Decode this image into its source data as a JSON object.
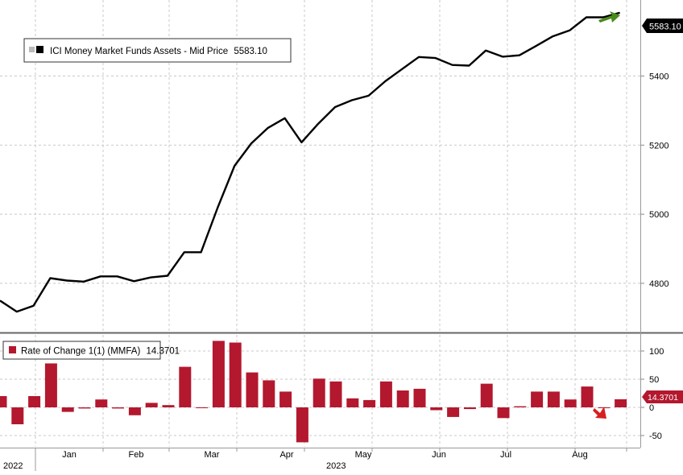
{
  "chart_data": [
    {
      "type": "line",
      "legend": {
        "label": "ICI Money Market Funds Assets - Mid Price",
        "value": "5583.10",
        "placement": "top-left"
      },
      "last_value_tag": "5583.10",
      "x_tick_labels": [
        "Jan",
        "Feb",
        "Mar",
        "Apr",
        "May",
        "Jun",
        "Jul",
        "Aug"
      ],
      "year_labels": [
        "2022",
        "2023"
      ],
      "y_ticks": [
        4800,
        5000,
        5200,
        5400
      ],
      "ylim": [
        4660,
        5620
      ],
      "grid": true,
      "colors": {
        "line": "#000000",
        "arrow": "#4a8a1a"
      },
      "series": [
        {
          "values": [
            4750,
            4718,
            4735,
            4815,
            4808,
            4805,
            4820,
            4820,
            4806,
            4817,
            4822,
            4890,
            4890,
            5020,
            5140,
            5205,
            5250,
            5278,
            5208,
            5262,
            5310,
            5330,
            5343,
            5385,
            5420,
            5455,
            5452,
            5432,
            5430,
            5474,
            5456,
            5460,
            5487,
            5515,
            5532,
            5570,
            5570,
            5583.1
          ]
        }
      ]
    },
    {
      "type": "bar",
      "legend": {
        "label": "Rate of Change 1(1) (MMFA)",
        "value": "14.3701",
        "placement": "top-left"
      },
      "last_value_tag": "14.3701",
      "y_ticks": [
        -50,
        0,
        50,
        100
      ],
      "y_tick_labels": [
        "-50",
        "0",
        "50",
        "100"
      ],
      "ylim": [
        -70,
        130
      ],
      "grid": true,
      "colors": {
        "bar": "#b3182e",
        "arrow": "#d62020"
      },
      "series": [
        {
          "values": [
            20,
            -30,
            20,
            78,
            -8,
            -2,
            14,
            -2,
            -14,
            8,
            4,
            72,
            0,
            118,
            115,
            62,
            48,
            28,
            -62,
            51,
            46,
            16,
            13,
            46,
            30,
            33,
            -5,
            -17,
            -3,
            42,
            -19,
            2,
            28,
            28,
            14,
            37,
            0,
            14.3701
          ]
        }
      ]
    }
  ]
}
